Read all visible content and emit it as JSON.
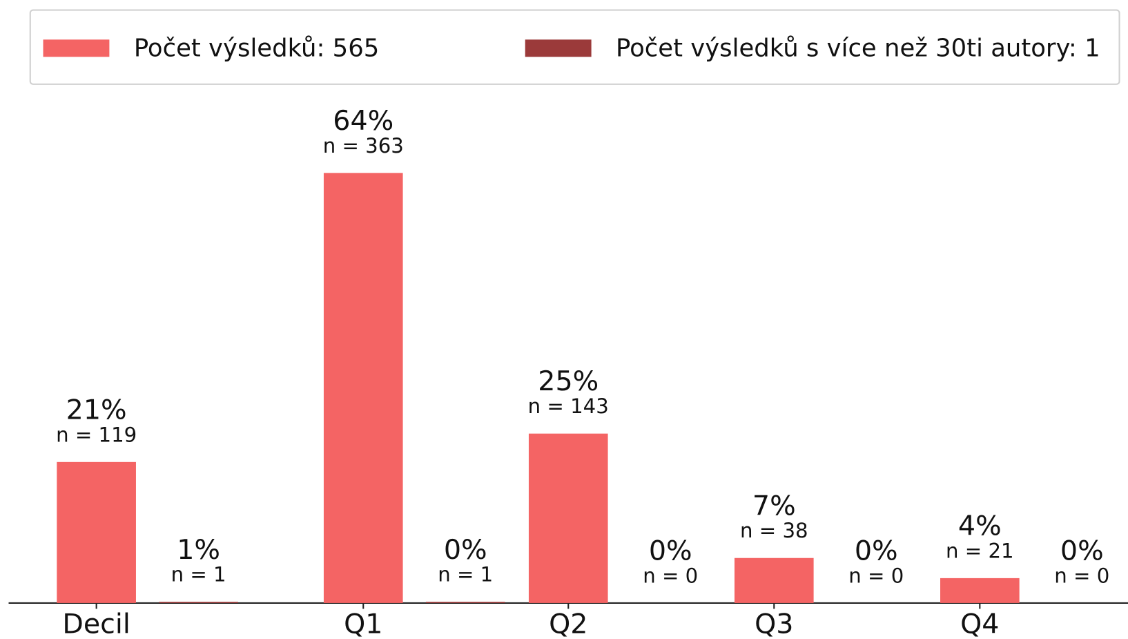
{
  "chart_data": {
    "type": "bar",
    "categories": [
      "Decil",
      "Q1",
      "Q2",
      "Q3",
      "Q4"
    ],
    "series": [
      {
        "name": "Počet výsledků: 565",
        "color": "#f46464",
        "values": [
          119,
          363,
          143,
          38,
          21
        ],
        "value_labels": [
          "n = 119",
          "n = 363",
          "n = 143",
          "n = 38",
          "n = 21"
        ],
        "percent_labels": [
          "21%",
          "64%",
          "25%",
          "7%",
          "4%"
        ]
      },
      {
        "name": "Počet výsledků s více než 30ti autory: 1",
        "color": "#9b3a3a",
        "values": [
          1,
          1,
          0,
          0,
          0
        ],
        "value_labels": [
          "n = 1",
          "n = 1",
          "n = 0",
          "n = 0",
          "n = 0"
        ],
        "percent_labels": [
          "1%",
          "0%",
          "0%",
          "0%",
          "0%"
        ]
      }
    ],
    "ylim": [
      0,
      430
    ],
    "legend": "top"
  }
}
